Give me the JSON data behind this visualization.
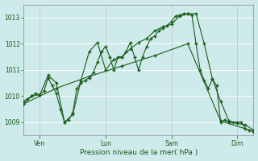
{
  "background_color": "#ceeaea",
  "grid_color": "#b8d8d8",
  "line_color": "#1a5c1a",
  "marker_color": "#1a5c1a",
  "xlabel": "Pression niveau de la mer( hPa )",
  "ylim": [
    1008.5,
    1013.5
  ],
  "yticks": [
    1009,
    1010,
    1011,
    1012,
    1013
  ],
  "xlim": [
    0,
    168
  ],
  "xtick_positions": [
    12,
    60,
    108,
    156
  ],
  "xtick_labels": [
    "Ven",
    "Lun",
    "Sam",
    "Dim"
  ],
  "vline_positions": [
    12,
    60,
    108,
    156
  ],
  "series1_x": [
    0,
    3,
    6,
    9,
    12,
    15,
    18,
    21,
    24,
    27,
    30,
    33,
    36,
    39,
    42,
    45,
    48,
    51,
    54,
    57,
    60,
    63,
    66,
    69,
    72,
    75,
    78,
    81,
    84,
    87,
    90,
    93,
    96,
    99,
    102,
    105,
    108,
    111,
    114,
    117,
    120,
    123,
    126,
    129,
    132,
    135,
    138,
    141,
    144,
    147,
    150,
    153,
    156,
    159,
    162,
    165,
    168
  ],
  "series1_y": [
    1009.8,
    1009.9,
    1010.0,
    1010.1,
    1010.05,
    1010.2,
    1010.7,
    1010.4,
    1010.1,
    1009.5,
    1009.0,
    1009.1,
    1009.35,
    1010.3,
    1010.5,
    1010.6,
    1010.7,
    1010.9,
    1011.3,
    1011.7,
    1011.9,
    1011.5,
    1011.0,
    1011.5,
    1011.5,
    1011.7,
    1012.05,
    1011.5,
    1011.0,
    1011.5,
    1011.9,
    1012.2,
    1012.3,
    1012.5,
    1012.6,
    1012.7,
    1012.85,
    1013.05,
    1013.1,
    1013.15,
    1013.15,
    1013.1,
    1012.0,
    1011.0,
    1010.6,
    1010.3,
    1010.65,
    1010.4,
    1009.0,
    1009.1,
    1009.0,
    1009.0,
    1009.0,
    1009.0,
    1008.75,
    1008.7,
    1008.65
  ],
  "series2_x": [
    0,
    6,
    12,
    18,
    24,
    30,
    36,
    42,
    48,
    54,
    60,
    66,
    72,
    78,
    84,
    90,
    96,
    102,
    108,
    114,
    120,
    126,
    132,
    138,
    144,
    150,
    156,
    162,
    168
  ],
  "series2_y": [
    1009.7,
    1010.0,
    1010.05,
    1010.8,
    1010.5,
    1009.0,
    1009.3,
    1010.6,
    1011.7,
    1012.05,
    1011.0,
    1011.4,
    1011.5,
    1011.8,
    1012.05,
    1012.2,
    1012.5,
    1012.65,
    1012.75,
    1013.05,
    1013.15,
    1013.15,
    1012.0,
    1010.65,
    1009.8,
    1009.05,
    1008.95,
    1008.9,
    1008.7
  ],
  "series3_x": [
    0,
    24,
    48,
    72,
    96,
    120,
    144,
    168
  ],
  "series3_y": [
    1009.7,
    1010.3,
    1010.75,
    1011.15,
    1011.55,
    1012.0,
    1009.05,
    1008.65
  ]
}
